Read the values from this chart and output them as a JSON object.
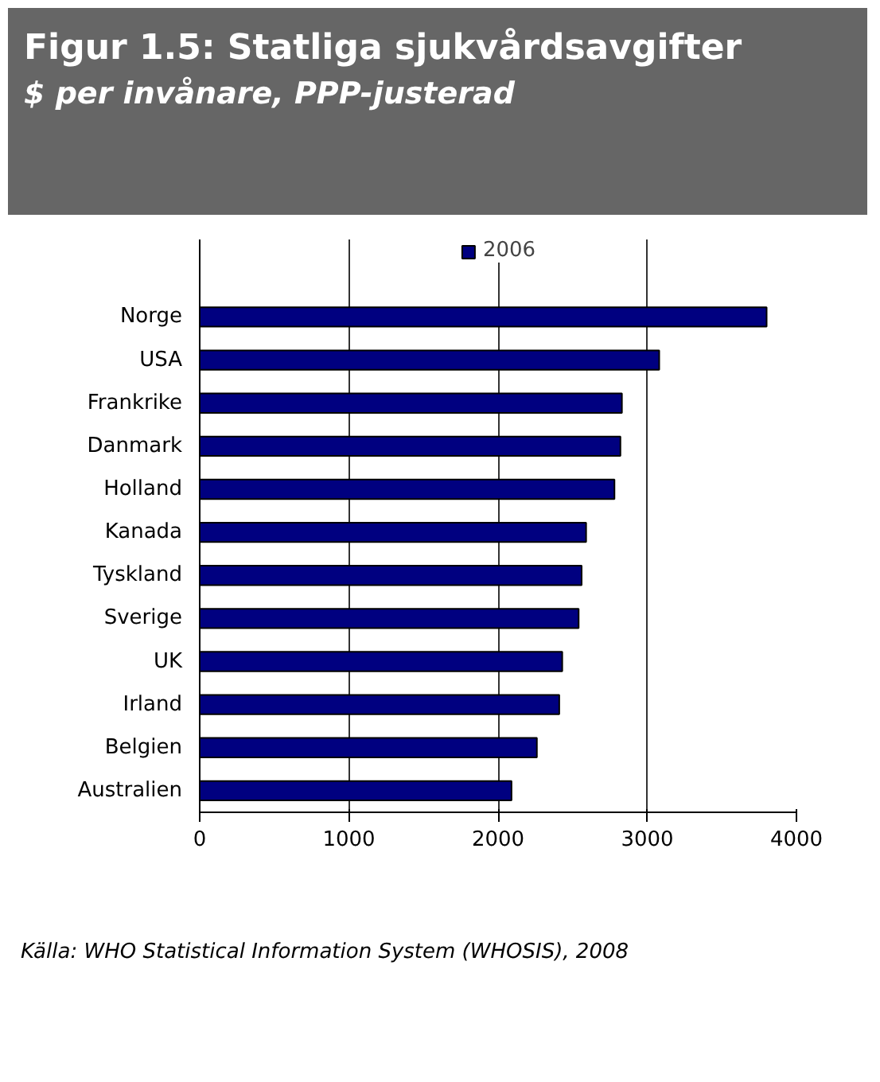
{
  "chart_data": {
    "type": "bar",
    "orientation": "horizontal",
    "title": "Figur 1.5: Statliga sjukvårdsavgifter",
    "subtitle": "$ per invånare, PPP-justerad",
    "categories": [
      "Norge",
      "USA",
      "Frankrike",
      "Danmark",
      "Holland",
      "Kanada",
      "Tyskland",
      "Sverige",
      "UK",
      "Irland",
      "Belgien",
      "Australien"
    ],
    "series": [
      {
        "name": "2006",
        "color": "#000080",
        "values": [
          3800,
          3080,
          2830,
          2820,
          2780,
          2590,
          2560,
          2540,
          2430,
          2410,
          2260,
          2090
        ]
      }
    ],
    "xlim": [
      0,
      4000
    ],
    "xticks": [
      0,
      1000,
      2000,
      3000,
      4000
    ],
    "grid": "x",
    "legend": "top",
    "annotations": [
      "Källa: WHO Statistical Information System (WHOSIS), 2008"
    ]
  }
}
